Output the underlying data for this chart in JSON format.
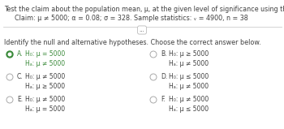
{
  "title_line1": "Test the claim about the population mean, μ, at the given level of significance using the given sample statistics.",
  "title_line2": "Claim: μ ≠ 5000; α = 0.08; σ = 328. Sample statistics: ᵥ = 4900, n = 38",
  "separator_text": "...",
  "question": "Identify the null and alternative hypotheses. Choose the correct answer below.",
  "options": [
    {
      "label": "A.",
      "h0": "H₀: μ = 5000",
      "ha": "Hₐ: μ ≠ 5000",
      "selected": true
    },
    {
      "label": "B.",
      "h0": "H₀: μ ≥ 5000",
      "ha": "Hₐ: μ ≠ 5000",
      "selected": false
    },
    {
      "label": "C.",
      "h0": "H₀: μ ≠ 5000",
      "ha": "Hₐ: μ ≥ 5000",
      "selected": false
    },
    {
      "label": "D.",
      "h0": "H₀: μ ≤ 5000",
      "ha": "Hₐ: μ ≠ 5000",
      "selected": false
    },
    {
      "label": "E.",
      "h0": "H₀: μ ≠ 5000",
      "ha": "Hₐ: μ = 5000",
      "selected": false
    },
    {
      "label": "F.",
      "h0": "H₀: μ ≠ 5000",
      "ha": "Hₐ: μ ≤ 5000",
      "selected": false
    }
  ],
  "bg_color": "#ffffff",
  "text_color": "#404040",
  "selected_color": "#3a8a3a",
  "radio_unsel_color": "#aaaaaa",
  "sep_line_color": "#cccccc",
  "font_size_title": 5.8,
  "font_size_claim": 5.8,
  "font_size_question": 5.8,
  "font_size_options": 5.5,
  "font_size_sep": 5.0
}
